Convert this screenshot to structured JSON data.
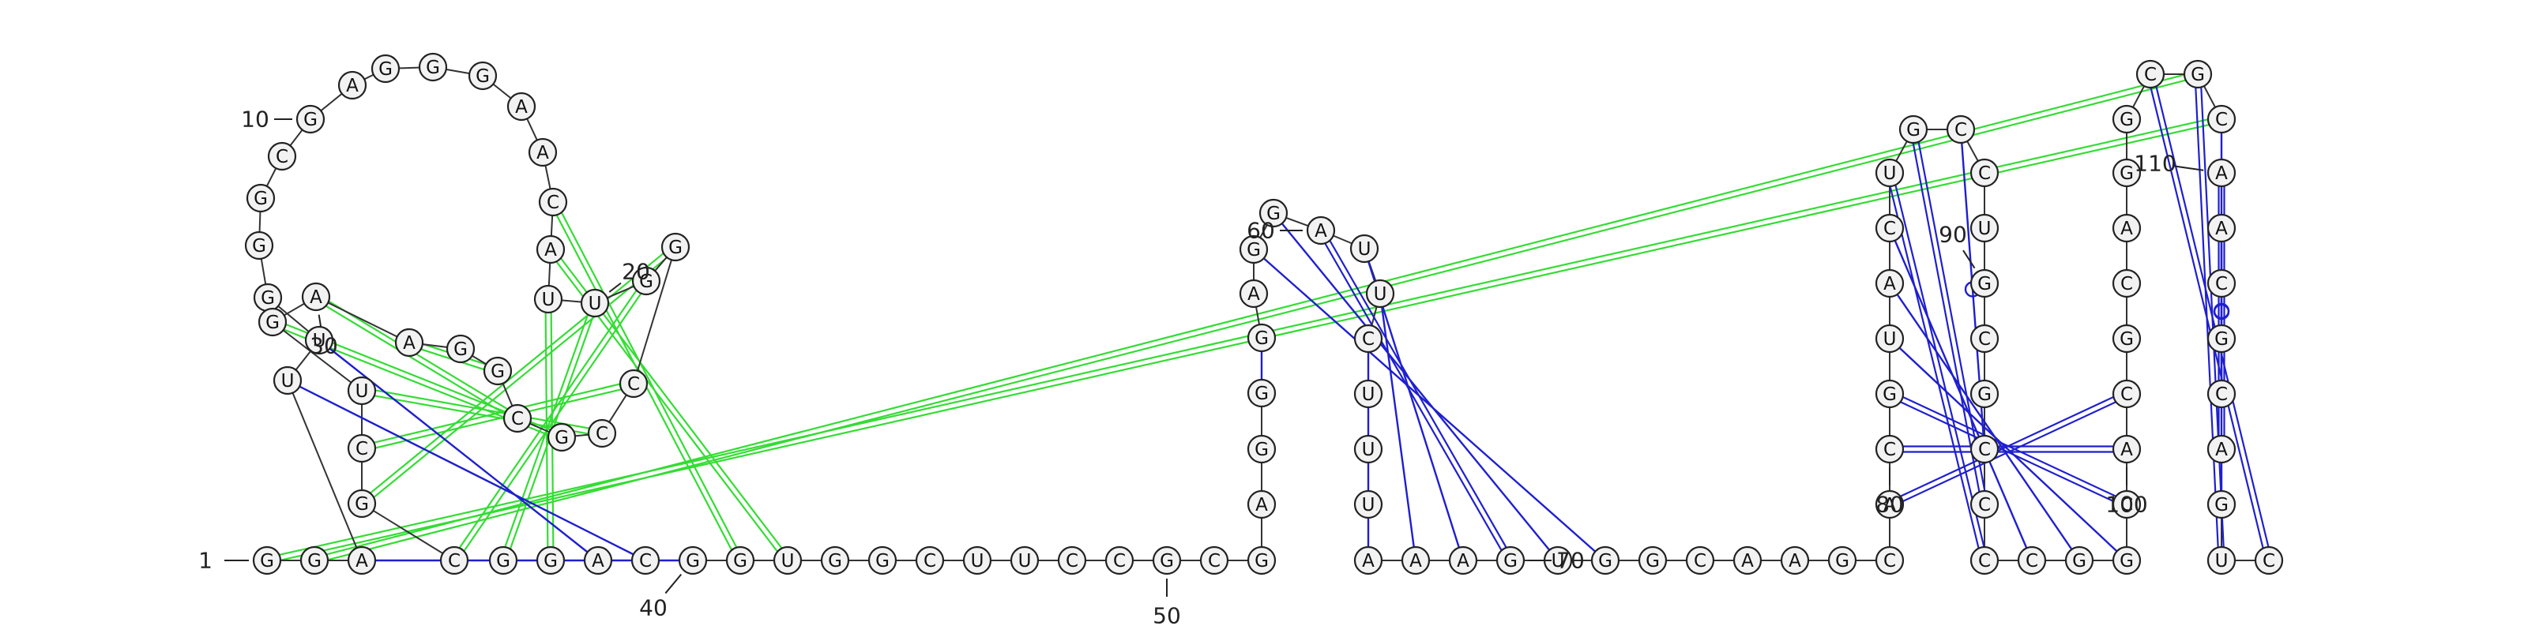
{
  "diagram": {
    "type": "rna-secondary-structure",
    "sequence": "GGAUUGGGCGAGGGAACAUUGGCCGCGGAAGUCGCGGACGGUGGCUUCCGCGAGGGAGGAUUCUUUAAAGUGGCAAGCACGUACUGCCUGCGCCCCGGCACGCAGGCGCAACGCAGUCC",
    "legend": {
      "pair_color": "#1f1fd0",
      "pseudoknot_color": "#33dd33"
    }
  }
}
